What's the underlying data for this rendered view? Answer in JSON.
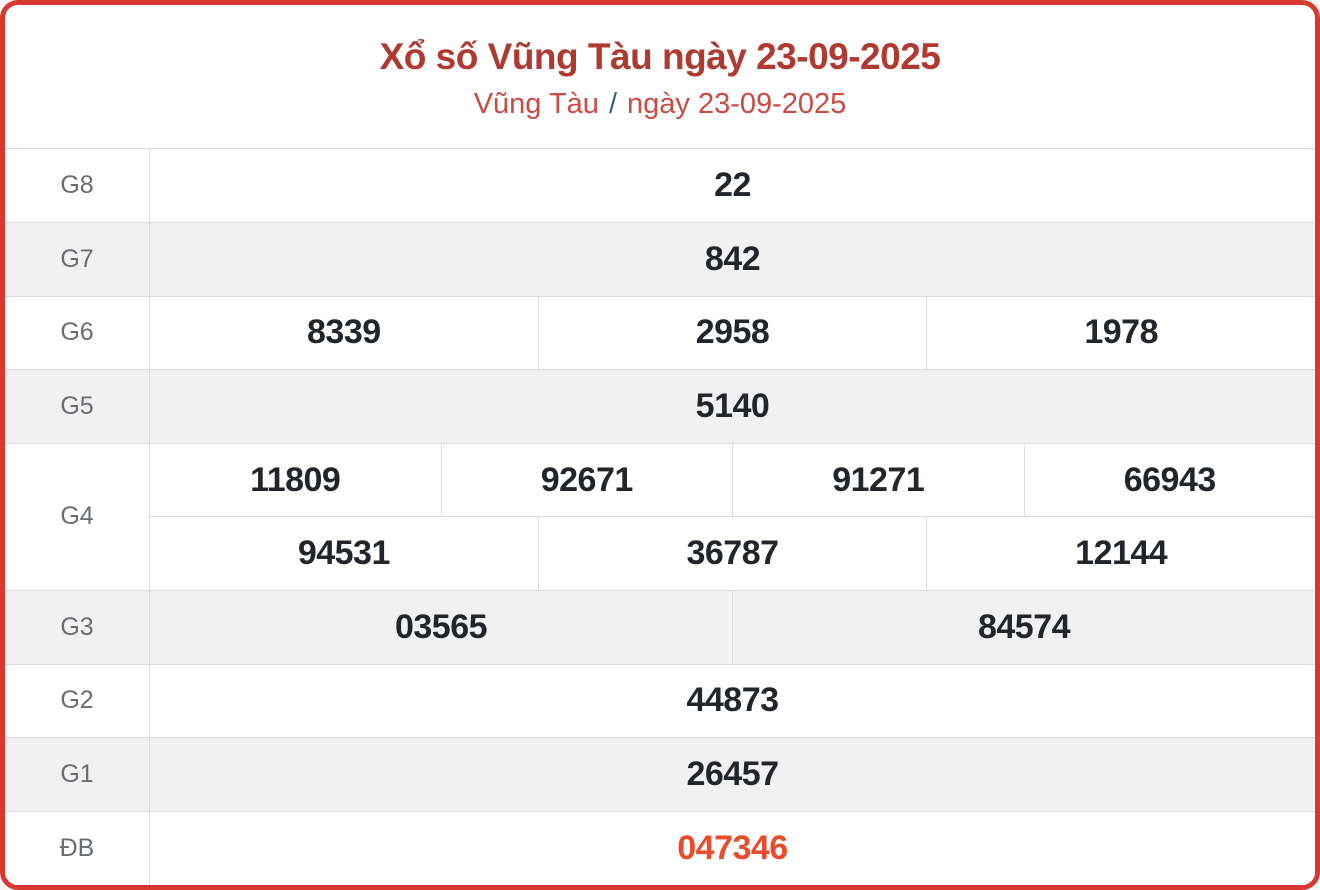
{
  "header": {
    "title": "Xổ số Vũng Tàu ngày 23-09-2025",
    "breadcrumb_region": "Vũng Tàu",
    "breadcrumb_separator": "/",
    "breadcrumb_date": "ngày 23-09-2025"
  },
  "colors": {
    "card_border": "#d9382e",
    "title": "#ae3a31",
    "breadcrumb_link": "#cb4a42",
    "breadcrumb_separator": "#31618f",
    "prize_number": "#222529",
    "prize_label": "#696d72",
    "special_number": "#ea4c2b",
    "row_alt_background": "#f1f1f1",
    "cell_border": "#dcdcdc"
  },
  "table": {
    "rows": [
      {
        "label": "G8",
        "cells": [
          "22"
        ]
      },
      {
        "label": "G7",
        "cells": [
          "842"
        ]
      },
      {
        "label": "G6",
        "cells": [
          "8339",
          "2958",
          "1978"
        ]
      },
      {
        "label": "G5",
        "cells": [
          "5140"
        ]
      },
      {
        "label": "G4",
        "cells": [
          "11809",
          "92671",
          "91271",
          "66943"
        ],
        "cells2": [
          "94531",
          "36787",
          "12144"
        ]
      },
      {
        "label": "G3",
        "cells": [
          "03565",
          "84574"
        ]
      },
      {
        "label": "G2",
        "cells": [
          "44873"
        ]
      },
      {
        "label": "G1",
        "cells": [
          "26457"
        ]
      },
      {
        "label": "ĐB",
        "cells": [
          "047346"
        ]
      }
    ]
  }
}
